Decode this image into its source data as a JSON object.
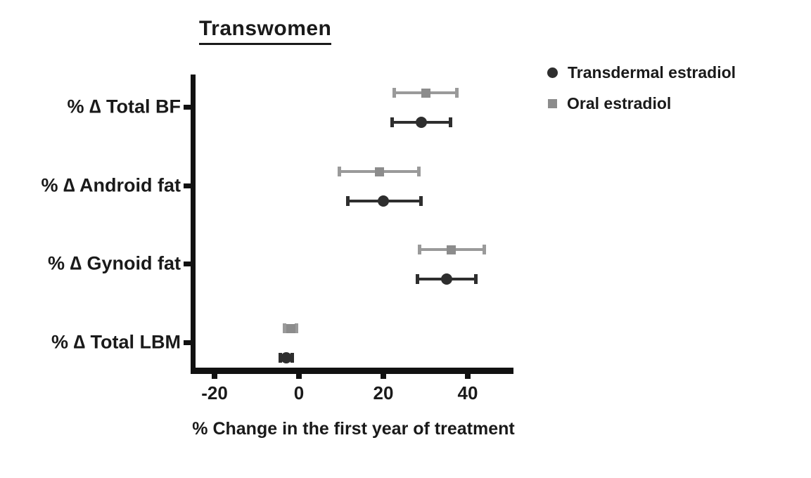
{
  "chart_data": {
    "type": "scatter",
    "title": "Transwomen",
    "xlabel": "% Change in the first year of treatment",
    "categories": [
      "% ∆ Total BF",
      "% ∆ Android fat",
      "% ∆ Gynoid fat",
      "% ∆ Total LBM"
    ],
    "x_ticks": [
      "-20",
      "0",
      "20",
      "40"
    ],
    "x_tick_values": [
      -20,
      0,
      20,
      40
    ],
    "xlim": [
      -25.5,
      51
    ],
    "grid": false,
    "legend_position": "top-right",
    "error_bars": true,
    "series": [
      {
        "name": "Transdermal estradiol",
        "marker": "circle",
        "color": "#2e2e2e",
        "line_color": "#2e2e2e",
        "values": [
          29,
          20,
          35,
          -3
        ],
        "ci_low": [
          22,
          11.5,
          28,
          -4.5
        ],
        "ci_high": [
          36,
          29,
          42,
          -1.5
        ]
      },
      {
        "name": "Oral estradiol",
        "marker": "square",
        "color": "#8c8c8c",
        "line_color": "#9a9a9a",
        "values": [
          30,
          19,
          36,
          -2
        ],
        "ci_low": [
          22.5,
          9.5,
          28.5,
          -3.5
        ],
        "ci_high": [
          37.5,
          28.5,
          44,
          -0.5
        ]
      }
    ],
    "axis_color": "#111111",
    "text_color": "#1a1a1a"
  }
}
